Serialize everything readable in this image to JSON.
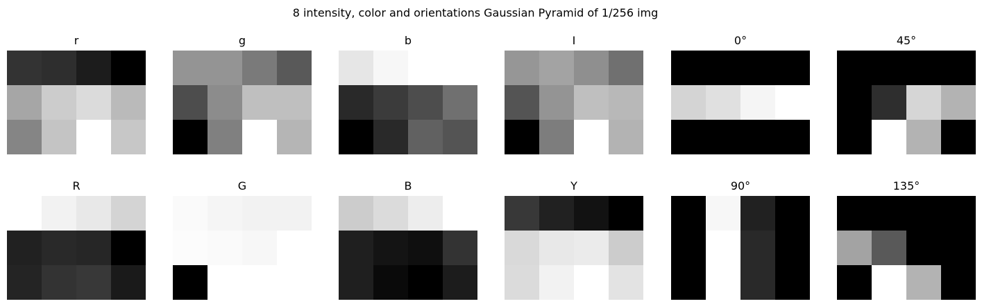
{
  "figure": {
    "title": "8 intensity, color and orientations Gaussian Pyramid of 1/256 img"
  },
  "chart_data": {
    "type": "heatmap",
    "colormap": "gray",
    "grid": false,
    "axes_visible": false,
    "rows": 2,
    "cols": 6,
    "panels": [
      {
        "title": "r",
        "values": [
          [
            0.2,
            0.18,
            0.11,
            0.0
          ],
          [
            0.65,
            0.8,
            0.86,
            0.73
          ],
          [
            0.52,
            0.77,
            1.0,
            0.78
          ]
        ]
      },
      {
        "title": "g",
        "values": [
          [
            0.58,
            0.58,
            0.48,
            0.35
          ],
          [
            0.3,
            0.55,
            0.75,
            0.75
          ],
          [
            0.0,
            0.5,
            1.0,
            0.71
          ]
        ]
      },
      {
        "title": "b",
        "values": [
          [
            0.9,
            0.97,
            1.0,
            1.0
          ],
          [
            0.16,
            0.23,
            0.3,
            0.44
          ],
          [
            0.0,
            0.16,
            0.38,
            0.33
          ]
        ]
      },
      {
        "title": "I",
        "values": [
          [
            0.59,
            0.64,
            0.56,
            0.44
          ],
          [
            0.33,
            0.58,
            0.75,
            0.72
          ],
          [
            0.0,
            0.49,
            1.0,
            0.7
          ]
        ]
      },
      {
        "title": "0°",
        "values": [
          [
            0.0,
            0.0,
            0.0,
            0.0
          ],
          [
            0.83,
            0.88,
            0.96,
            1.0
          ],
          [
            0.0,
            0.0,
            0.0,
            0.0
          ]
        ]
      },
      {
        "title": "45°",
        "values": [
          [
            0.0,
            0.0,
            0.0,
            0.0
          ],
          [
            0.0,
            0.18,
            0.84,
            0.7
          ],
          [
            0.0,
            1.0,
            0.7,
            0.0
          ]
        ]
      },
      {
        "title": "R",
        "values": [
          [
            1.0,
            0.95,
            0.91,
            0.83
          ],
          [
            0.13,
            0.16,
            0.15,
            0.0
          ],
          [
            0.14,
            0.2,
            0.22,
            0.1
          ]
        ]
      },
      {
        "title": "G",
        "values": [
          [
            0.98,
            0.96,
            0.95,
            0.95
          ],
          [
            0.99,
            0.98,
            0.97,
            1.0
          ],
          [
            0.0,
            1.0,
            1.0,
            1.0
          ]
        ]
      },
      {
        "title": "B",
        "values": [
          [
            0.8,
            0.86,
            0.93,
            1.0
          ],
          [
            0.12,
            0.08,
            0.06,
            0.2
          ],
          [
            0.12,
            0.04,
            0.0,
            0.11
          ]
        ]
      },
      {
        "title": "Y",
        "values": [
          [
            0.22,
            0.13,
            0.07,
            0.0
          ],
          [
            0.85,
            0.91,
            0.92,
            0.8
          ],
          [
            0.86,
            0.95,
            1.0,
            0.89
          ]
        ]
      },
      {
        "title": "90°",
        "values": [
          [
            0.0,
            0.97,
            0.13,
            0.0
          ],
          [
            0.0,
            1.0,
            0.16,
            0.0
          ],
          [
            0.0,
            1.0,
            0.16,
            0.0
          ]
        ]
      },
      {
        "title": "135°",
        "values": [
          [
            0.0,
            0.0,
            0.0,
            0.0
          ],
          [
            0.64,
            0.35,
            0.0,
            0.0
          ],
          [
            0.0,
            1.0,
            0.7,
            0.0
          ]
        ]
      }
    ]
  }
}
